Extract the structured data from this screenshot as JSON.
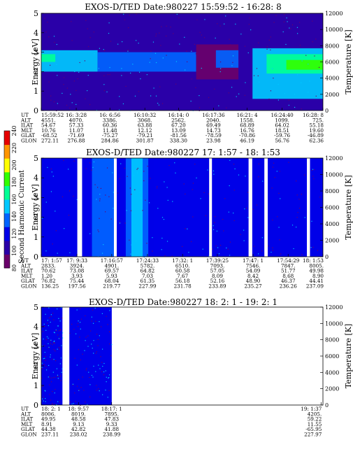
{
  "colorbar": {
    "label": "Second Harmonic Current",
    "ticks": [
      "80",
      "100",
      "120",
      "140",
      "160",
      "180",
      "200",
      "220",
      "240"
    ]
  },
  "panels": [
    {
      "title": "EXOS-D/TED   Date:980227  15:59:52 - 16:28: 8",
      "ylabel": "Energy [eV]",
      "y2label": "Temperature [K]",
      "yticks": [
        "0",
        "1",
        "2",
        "3",
        "4",
        "5"
      ],
      "y2ticks": [
        "0",
        "2000",
        "4000",
        "6000",
        "8000",
        "10000",
        "12000"
      ],
      "table_labels": [
        "UT",
        "ALT",
        "ILAT",
        "MLT",
        "GLAT",
        "GLON"
      ],
      "table_columns": [
        [
          "15:59:52",
          "4551.",
          "54.67",
          "10.76",
          "-68.52",
          "272.11"
        ],
        [
          "16: 3:28",
          "4070.",
          "57.33",
          "11.07",
          "-71.69",
          "276.88"
        ],
        [
          "16: 6:56",
          "3386.",
          "60.36",
          "11.48",
          "-75.27",
          "284.86"
        ],
        [
          "16:10:32",
          "3068.",
          "63.88",
          "12.12",
          "-79.21",
          "301.87"
        ],
        [
          "16:14: 0",
          "2562.",
          "67.20",
          "13.09",
          "-81.56",
          "338.30"
        ],
        [
          "16:17:36",
          "2040.",
          "69.49",
          "14.73",
          "-78.59",
          "23.98"
        ],
        [
          "16:21: 4",
          "1558.",
          "68.89",
          "16.76",
          "-70.86",
          "46.19"
        ],
        [
          "16:24:40",
          "1099.",
          "64.02",
          "18.51",
          "-59.76",
          "56.76"
        ],
        [
          "16:28: 8",
          "725.",
          "55.18",
          "19.60",
          "-46.89",
          "62.36"
        ]
      ]
    },
    {
      "title": "EXOS-D/TED   Date:980227  17: 1:57 - 18: 1:53",
      "ylabel": "Energy [eV]",
      "y2label": "Temperature [K]",
      "yticks": [
        "0",
        "1",
        "2",
        "3",
        "4",
        "5"
      ],
      "y2ticks": [
        "0",
        "2000",
        "4000",
        "6000",
        "8000",
        "10000",
        "12000"
      ],
      "table_labels": [
        "UT",
        "ALT",
        "ILAT",
        "MLT",
        "GLAT",
        "GLON"
      ],
      "table_columns": [
        [
          "17: 1:57",
          "2833.",
          "70.62",
          "1.20",
          "76.82",
          "136.25"
        ],
        [
          "17: 9:33",
          "3924.",
          "73.08",
          "3.93",
          "75.44",
          "197.56"
        ],
        [
          "17:16:57",
          "4901.",
          "69.57",
          "5.93",
          "68.04",
          "219.77"
        ],
        [
          "17:24:33",
          "5782.",
          "64.82",
          "7.03",
          "61.35",
          "227.99"
        ],
        [
          "17:32: 1",
          "6510.",
          "60.58",
          "7.67",
          "56.18",
          "231.78"
        ],
        [
          "17:39:25",
          "7093.",
          "57.05",
          "8.09",
          "52.16",
          "233.89"
        ],
        [
          "17:47: 1",
          "7546.",
          "54.09",
          "8.42",
          "48.90",
          "235.27"
        ],
        [
          "17:54:29",
          "7847.",
          "51.77",
          "8.68",
          "46.37",
          "236.26"
        ],
        [
          "18: 1:53",
          "8005.",
          "49.98",
          "8.90",
          "44.41",
          "237.09"
        ]
      ]
    },
    {
      "title": "EXOS-D/TED   Date:980227  18: 2: 1 - 19: 2: 1",
      "ylabel": "Energy [eV]",
      "y2label": "Temperature [K]",
      "yticks": [
        "0",
        "1",
        "2",
        "3",
        "4",
        "5"
      ],
      "y2ticks": [
        "0",
        "2000",
        "4000",
        "6000",
        "8000",
        "10000",
        "12000"
      ],
      "table_labels": [
        "UT",
        "ALT",
        "ILAT",
        "MLT",
        "GLAT",
        "GLON"
      ],
      "table_columns": [
        [
          "18: 2: 1",
          "8006.",
          "49.95",
          "8.91",
          "44.38",
          "237.11"
        ],
        [
          "18: 9:57",
          "8019.",
          "48.58",
          "9.13",
          "42.82",
          "238.02"
        ],
        [
          "18:17: 1",
          "7895.",
          "47.83",
          "9.33",
          "41.88",
          "238.99"
        ],
        [
          "19: 1:37",
          "4205.",
          "59.22",
          "11.55",
          "-65.95",
          "227.97"
        ]
      ]
    }
  ],
  "chart_data": [
    {
      "type": "heatmap",
      "title": "EXOS-D/TED   Date:980227  15:59:52 - 16:28: 8",
      "ylabel": "Energy [eV]",
      "y2label": "Temperature [K]",
      "ylim": [
        0,
        5
      ],
      "y2lim": [
        0,
        12000
      ],
      "x_ticks": [
        "15:59:52",
        "16: 3:28",
        "16: 6:56",
        "16:10:32",
        "16:14: 0",
        "16:17:36",
        "16:21: 4",
        "16:24:40",
        "16:28: 8"
      ],
      "x_time_fraction": [
        0,
        0.1242,
        0.2437,
        0.3678,
        0.4873,
        0.6114,
        0.731,
        0.8551,
        1
      ],
      "colorbar_label": "Second Harmonic Current",
      "colorbar_range": [
        80,
        240
      ],
      "colorscale": [
        "#6a006a",
        "#2a00a8",
        "#0000e8",
        "#0064ff",
        "#00c8ff",
        "#00ff96",
        "#32ff00",
        "#ffff00",
        "#ff9600",
        "#e60000"
      ],
      "background_level": 110,
      "bands": [
        {
          "t0": 0.0,
          "t1": 0.2,
          "e0": 2.0,
          "e1": 3.1,
          "level": 145
        },
        {
          "t0": 0.0,
          "t1": 0.05,
          "e0": 2.5,
          "e1": 2.9,
          "level": 160
        },
        {
          "t0": 0.2,
          "t1": 0.55,
          "e0": 2.0,
          "e1": 3.0,
          "level": 130
        },
        {
          "t0": 0.55,
          "t1": 0.7,
          "e0": 1.6,
          "e1": 3.4,
          "level": 95
        },
        {
          "t0": 0.62,
          "t1": 0.7,
          "e0": 2.2,
          "e1": 3.1,
          "level": 135
        },
        {
          "t0": 0.75,
          "t1": 1.0,
          "e0": 0.6,
          "e1": 3.2,
          "level": 150
        },
        {
          "t0": 0.8,
          "t1": 1.0,
          "e0": 1.9,
          "e1": 2.9,
          "level": 170
        },
        {
          "t0": 0.87,
          "t1": 1.0,
          "e0": 2.1,
          "e1": 2.6,
          "level": 185
        }
      ],
      "gaps": []
    },
    {
      "type": "heatmap",
      "title": "EXOS-D/TED   Date:980227  17: 1:57 - 18: 1:53",
      "ylabel": "Energy [eV]",
      "y2label": "Temperature [K]",
      "ylim": [
        0,
        5
      ],
      "y2lim": [
        0,
        12000
      ],
      "x_ticks": [
        "17: 1:57",
        "17: 9:33",
        "17:16:57",
        "17:24:33",
        "17:32: 1",
        "17:39:25",
        "17:47: 1",
        "17:54:29",
        "18: 1:53"
      ],
      "x_time_fraction": [
        0,
        0.1268,
        0.2503,
        0.3771,
        0.5017,
        0.6252,
        0.752,
        0.8765,
        1
      ],
      "colorbar_label": "Second Harmonic Current",
      "colorbar_range": [
        80,
        240
      ],
      "colorscale": [
        "#6a006a",
        "#2a00a8",
        "#0000e8",
        "#0064ff",
        "#00c8ff",
        "#00ff96",
        "#32ff00",
        "#ffff00",
        "#ff9600",
        "#e60000"
      ],
      "background_level": 118,
      "bands": [
        {
          "t0": 0.0,
          "t1": 0.32,
          "e0": 0.0,
          "e1": 5.0,
          "level": 122
        },
        {
          "t0": 0.18,
          "t1": 0.26,
          "e0": 0.0,
          "e1": 5.0,
          "level": 135
        },
        {
          "t0": 0.3,
          "t1": 0.38,
          "e0": 0.0,
          "e1": 5.0,
          "level": 140
        },
        {
          "t0": 0.32,
          "t1": 0.36,
          "e0": 0.0,
          "e1": 5.0,
          "level": 152
        },
        {
          "t0": 0.4,
          "t1": 0.58,
          "e0": 0.0,
          "e1": 5.0,
          "level": 112
        }
      ],
      "gaps": [
        [
          0.128,
          0.145
        ],
        [
          0.258,
          0.268
        ],
        [
          0.596,
          0.606
        ],
        [
          0.736,
          0.749
        ],
        [
          0.792,
          0.804
        ],
        [
          0.943,
          0.954
        ]
      ]
    },
    {
      "type": "heatmap",
      "title": "EXOS-D/TED   Date:980227  18: 2: 1 - 19: 2: 1",
      "ylabel": "Energy [eV]",
      "y2label": "Temperature [K]",
      "ylim": [
        0,
        5
      ],
      "y2lim": [
        0,
        12000
      ],
      "x_ticks": [
        "18: 2: 1",
        "18: 9:57",
        "18:17: 1",
        "19: 1:37"
      ],
      "x_time_fraction": [
        0,
        0.1322,
        0.25,
        0.9933
      ],
      "colorbar_label": "Second Harmonic Current",
      "colorbar_range": [
        80,
        240
      ],
      "colorscale": [
        "#6a006a",
        "#2a00a8",
        "#0000e8",
        "#0064ff",
        "#00c8ff",
        "#00ff96",
        "#32ff00",
        "#ffff00",
        "#ff9600",
        "#e60000"
      ],
      "background_level": 118,
      "data_coverage": [
        [
          0.0,
          0.075
        ],
        [
          0.1,
          0.25
        ]
      ],
      "bands": [
        {
          "t0": 0.0,
          "t1": 0.075,
          "e0": 0.0,
          "e1": 5.0,
          "level": 118
        },
        {
          "t0": 0.1,
          "t1": 0.25,
          "e0": 0.0,
          "e1": 5.0,
          "level": 118
        }
      ],
      "gaps": []
    }
  ]
}
